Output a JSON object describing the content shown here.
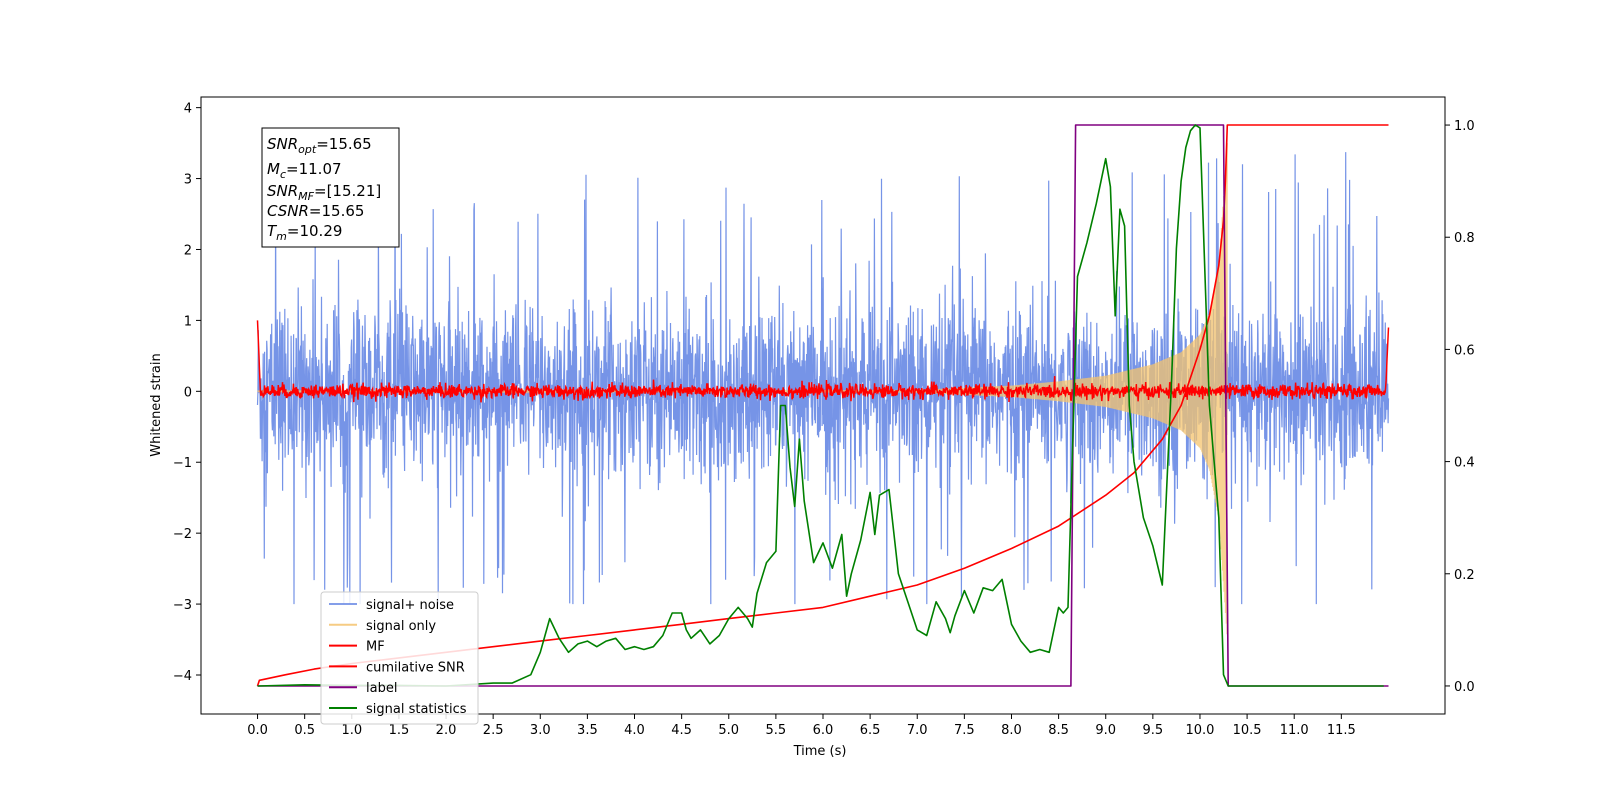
{
  "chart_data": {
    "type": "line",
    "title": "",
    "xlabel": "Time (s)",
    "ylabel": "Whitened strain",
    "y2label": "",
    "xlim": [
      -0.6,
      12.6
    ],
    "ylim": [
      -4.55,
      4.15
    ],
    "y2lim": [
      -0.05,
      1.05
    ],
    "x_ticks": [
      0.0,
      0.5,
      1.0,
      1.5,
      2.0,
      2.5,
      3.0,
      3.5,
      4.0,
      4.5,
      5.0,
      5.5,
      6.0,
      6.5,
      7.0,
      7.5,
      8.0,
      8.5,
      9.0,
      9.5,
      10.0,
      10.5,
      11.0,
      11.5
    ],
    "x_tick_labels": [
      "0.0",
      "0.5",
      "1.0",
      "1.5",
      "2.0",
      "2.5",
      "3.0",
      "3.5",
      "4.0",
      "4.5",
      "5.0",
      "5.5",
      "6.0",
      "6.5",
      "7.0",
      "7.5",
      "8.0",
      "8.5",
      "9.0",
      "9.5",
      "10.0",
      "10.5",
      "11.0",
      "11.5"
    ],
    "y_ticks": [
      4,
      3,
      2,
      1,
      0,
      -1,
      -2,
      -3,
      -4
    ],
    "y_tick_labels": [
      "4",
      "3",
      "2",
      "1",
      "0",
      "−1",
      "−2",
      "−3",
      "−4"
    ],
    "y2_ticks": [
      1.0,
      0.8,
      0.6,
      0.4,
      0.2,
      0.0
    ],
    "y2_tick_labels": [
      "1.0",
      "0.8",
      "0.6",
      "0.4",
      "0.2",
      "0.0"
    ],
    "grid": false,
    "legend_placement": "lower-left",
    "info_box": {
      "snr_opt": {
        "base": "SNR",
        "sub": "opt",
        "value": "=15.65"
      },
      "mc": {
        "base": "M",
        "sub": "c",
        "value": "=11.07"
      },
      "snr_mf": {
        "base": "SNR",
        "sub": "MF",
        "value": "=[15.21]"
      },
      "csnr": {
        "base": "CSNR",
        "sub": "",
        "value": "=15.65"
      },
      "tm": {
        "base": "T",
        "sub": "m",
        "value": "=10.29"
      }
    },
    "series": [
      {
        "name": "signal+ noise",
        "color": "#6f8ee6",
        "axis": "left",
        "style": "noise-band",
        "x_range": [
          0.0,
          12.0
        ],
        "band_y": [
          -1.55,
          1.45
        ],
        "peaks_y": [
          -3.0,
          3.8
        ]
      },
      {
        "name": "signal only",
        "color": "#f5c46e",
        "axis": "left",
        "style": "chirp",
        "x_range": [
          0.0,
          10.29
        ],
        "envelope_x": [
          7.0,
          8.0,
          8.5,
          9.0,
          9.5,
          9.8,
          10.0,
          10.1,
          10.2,
          10.29
        ],
        "envelope_y": [
          0.02,
          0.08,
          0.14,
          0.22,
          0.38,
          0.55,
          0.8,
          1.1,
          1.8,
          3.5
        ]
      },
      {
        "name": "MF",
        "color": "#ff0000",
        "axis": "left",
        "style": "jagged",
        "x_range": [
          0.0,
          12.0
        ],
        "y": [
          1.0,
          0.0,
          0.0,
          0.0,
          0.9
        ],
        "x": [
          0.0,
          0.03,
          6.0,
          11.97,
          12.0
        ]
      },
      {
        "name": "cumilative SNR",
        "color": "#ff0000",
        "axis": "right",
        "x": [
          0.0,
          0.02,
          0.3,
          0.6,
          1.0,
          1.5,
          2.0,
          2.5,
          3.0,
          3.5,
          4.0,
          4.5,
          5.0,
          5.5,
          6.0,
          6.5,
          7.0,
          7.5,
          8.0,
          8.5,
          9.0,
          9.3,
          9.6,
          9.8,
          10.0,
          10.1,
          10.2,
          10.25,
          10.27,
          10.29,
          10.35,
          12.0
        ],
        "y": [
          0.0,
          0.01,
          0.02,
          0.03,
          0.04,
          0.05,
          0.06,
          0.07,
          0.08,
          0.09,
          0.1,
          0.11,
          0.12,
          0.13,
          0.14,
          0.16,
          0.18,
          0.21,
          0.245,
          0.285,
          0.34,
          0.38,
          0.44,
          0.5,
          0.6,
          0.66,
          0.75,
          0.83,
          0.9,
          1.0,
          1.0,
          1.0
        ]
      },
      {
        "name": "label",
        "color": "#800080",
        "axis": "right",
        "x": [
          0.0,
          8.63,
          8.68,
          10.25,
          10.3,
          12.0
        ],
        "y": [
          0.0,
          0.0,
          1.0,
          1.0,
          0.0,
          0.0
        ]
      },
      {
        "name": "signal statistics",
        "color": "#008000",
        "axis": "right",
        "x": [
          0.0,
          0.5,
          1.0,
          1.5,
          2.0,
          2.5,
          2.7,
          2.9,
          3.0,
          3.05,
          3.1,
          3.2,
          3.3,
          3.4,
          3.5,
          3.6,
          3.7,
          3.8,
          3.9,
          4.0,
          4.1,
          4.2,
          4.3,
          4.4,
          4.5,
          4.55,
          4.6,
          4.7,
          4.8,
          4.9,
          5.0,
          5.1,
          5.2,
          5.25,
          5.3,
          5.4,
          5.5,
          5.55,
          5.6,
          5.65,
          5.7,
          5.75,
          5.8,
          5.9,
          6.0,
          6.1,
          6.2,
          6.25,
          6.3,
          6.4,
          6.5,
          6.55,
          6.6,
          6.7,
          6.8,
          6.9,
          7.0,
          7.1,
          7.2,
          7.3,
          7.35,
          7.4,
          7.5,
          7.6,
          7.7,
          7.8,
          7.9,
          8.0,
          8.1,
          8.2,
          8.3,
          8.4,
          8.5,
          8.55,
          8.6,
          8.7,
          8.8,
          8.9,
          9.0,
          9.05,
          9.1,
          9.15,
          9.2,
          9.25,
          9.3,
          9.4,
          9.5,
          9.6,
          9.7,
          9.75,
          9.8,
          9.85,
          9.9,
          9.95,
          10.0,
          10.1,
          10.2,
          10.25,
          10.3,
          10.35,
          11.95
        ],
        "y": [
          0.0,
          0.002,
          0.001,
          0.001,
          0.0,
          0.005,
          0.005,
          0.02,
          0.06,
          0.09,
          0.12,
          0.085,
          0.06,
          0.075,
          0.08,
          0.07,
          0.08,
          0.085,
          0.065,
          0.07,
          0.065,
          0.07,
          0.09,
          0.13,
          0.13,
          0.1,
          0.085,
          0.1,
          0.075,
          0.09,
          0.12,
          0.14,
          0.12,
          0.105,
          0.165,
          0.22,
          0.24,
          0.5,
          0.5,
          0.39,
          0.32,
          0.44,
          0.33,
          0.22,
          0.255,
          0.21,
          0.27,
          0.16,
          0.2,
          0.26,
          0.345,
          0.27,
          0.34,
          0.35,
          0.2,
          0.15,
          0.1,
          0.09,
          0.15,
          0.12,
          0.095,
          0.125,
          0.17,
          0.13,
          0.175,
          0.17,
          0.19,
          0.11,
          0.08,
          0.06,
          0.065,
          0.06,
          0.14,
          0.13,
          0.14,
          0.73,
          0.79,
          0.86,
          0.94,
          0.89,
          0.66,
          0.85,
          0.82,
          0.5,
          0.4,
          0.3,
          0.25,
          0.18,
          0.55,
          0.78,
          0.9,
          0.96,
          0.99,
          1.0,
          0.995,
          0.5,
          0.3,
          0.02,
          0.0,
          0.0,
          0.0
        ]
      }
    ]
  }
}
